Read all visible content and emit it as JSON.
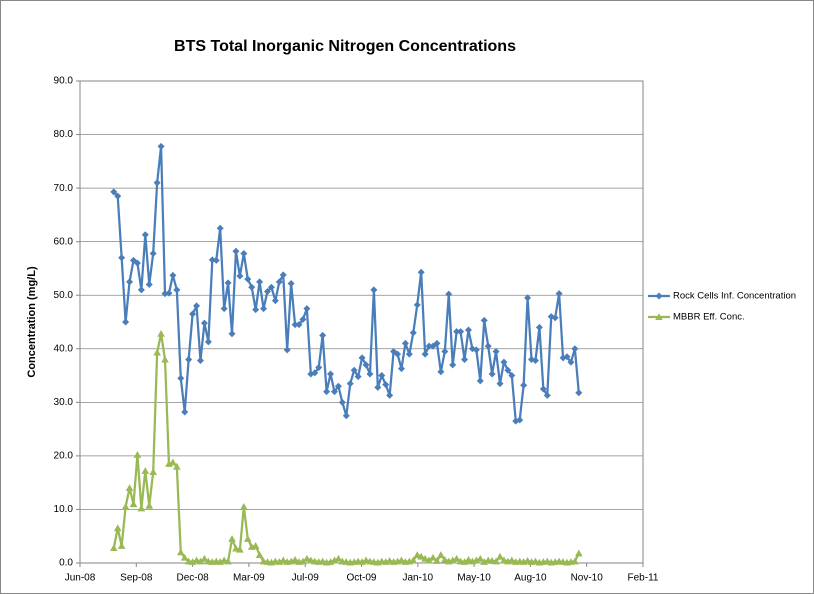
{
  "chart_data": {
    "type": "line",
    "title": "BTS  Total Inorganic Nitrogen Concentrations",
    "y_label": "Concentration (mg/L)",
    "x": [
      39660,
      39667,
      39674,
      39681,
      39688,
      39695,
      39702,
      39709,
      39716,
      39723,
      39730,
      39737,
      39744,
      39751,
      39758,
      39765,
      39772,
      39779,
      39786,
      39793,
      39800,
      39807,
      39814,
      39821,
      39828,
      39835,
      39842,
      39849,
      39856,
      39863,
      39870,
      39877,
      39884,
      39891,
      39898,
      39905,
      39912,
      39919,
      39926,
      39933,
      39940,
      39947,
      39954,
      39961,
      39968,
      39975,
      39982,
      39989,
      39996,
      40003,
      40010,
      40017,
      40024,
      40031,
      40038,
      40045,
      40052,
      40059,
      40066,
      40073,
      40080,
      40087,
      40094,
      40101,
      40108,
      40115,
      40122,
      40129,
      40136,
      40143,
      40150,
      40157,
      40164,
      40171,
      40178,
      40185,
      40192,
      40199,
      40206,
      40213,
      40220,
      40227,
      40234,
      40241,
      40248,
      40255,
      40262,
      40269,
      40276,
      40283,
      40290,
      40297,
      40304,
      40311,
      40318,
      40325,
      40332,
      40339,
      40346,
      40353,
      40360,
      40367,
      40374,
      40381,
      40388,
      40395,
      40402,
      40409,
      40416,
      40423,
      40430,
      40437,
      40444,
      40451,
      40458,
      40465,
      40472,
      40479,
      40486
    ],
    "series": [
      {
        "name": "Rock Cells Inf. Concentration",
        "color": "#4a7ebb",
        "marker": "diamond",
        "values": [
          69.3,
          68.5,
          57,
          45,
          52.5,
          56.5,
          56,
          51,
          61.3,
          52,
          57.8,
          71,
          77.8,
          50.3,
          50.4,
          53.7,
          51,
          34.5,
          28.2,
          38,
          46.5,
          48,
          37.8,
          44.8,
          41.3,
          56.6,
          56.5,
          62.5,
          47.5,
          52.3,
          42.8,
          58.2,
          53.6,
          57.8,
          53,
          51.5,
          47.3,
          52.5,
          47.5,
          50.7,
          51.5,
          49,
          52.5,
          53.8,
          39.8,
          52.2,
          44.5,
          44.5,
          45.5,
          47.5,
          35.3,
          35.5,
          36.5,
          42.5,
          32,
          35.3,
          32,
          33,
          30,
          27.5,
          33.5,
          36,
          34.8,
          38.3,
          37,
          35.3,
          51,
          32.8,
          35,
          33.3,
          31.3,
          39.5,
          39,
          36.3,
          41,
          39,
          43,
          48.2,
          54.3,
          39,
          40.5,
          40.5,
          41,
          35.7,
          39.5,
          50.2,
          37,
          43.2,
          43.2,
          38,
          43.5,
          40,
          39.8,
          34,
          45.3,
          40.5,
          35.3,
          39.5,
          33.5,
          37.5,
          36,
          35,
          26.5,
          26.7,
          33.2,
          49.5,
          38,
          37.8,
          44,
          32.5,
          31.3,
          46,
          45.8,
          50.3,
          38.3,
          38.5,
          37.5,
          40,
          31.8
        ]
      },
      {
        "name": "MBBR Eff. Conc.",
        "color": "#98b954",
        "marker": "triangle",
        "values": [
          2.8,
          6.5,
          3.2,
          10.5,
          14,
          11,
          20.2,
          10.2,
          17.2,
          10.7,
          17,
          39.3,
          42.8,
          38,
          18.5,
          18.8,
          18,
          2,
          1,
          0.3,
          0.2,
          0.5,
          0.3,
          0.8,
          0.3,
          0.2,
          0.3,
          0.2,
          0.5,
          0.3,
          4.5,
          2.7,
          2.5,
          10.5,
          4.5,
          3,
          3.2,
          1.5,
          0.3,
          0.2,
          0.1,
          0.3,
          0.2,
          0.5,
          0.2,
          0.3,
          0.6,
          0.2,
          0.3,
          0.8,
          0.5,
          0.3,
          0.2,
          0.3,
          0.1,
          0.2,
          0.5,
          0.8,
          0.3,
          0.2,
          0.1,
          0.2,
          0.3,
          0.2,
          0.5,
          0.3,
          0.2,
          0.1,
          0.3,
          0.2,
          0.4,
          0.2,
          0.3,
          0.5,
          0.2,
          0.3,
          0.5,
          1.5,
          1.2,
          0.8,
          0.5,
          1,
          0.4,
          1.5,
          0.6,
          0.3,
          0.5,
          0.8,
          0.3,
          0.2,
          0.6,
          0.3,
          0.5,
          0.8,
          0.2,
          0.5,
          0.4,
          0.3,
          1.2,
          0.5,
          0.3,
          0.5,
          0.2,
          0.3,
          0.2,
          0.4,
          0.2,
          0.3,
          0.1,
          0.2,
          0.3,
          0.1,
          0.2,
          0.3,
          0.2,
          0.1,
          0.2,
          0.3,
          1.8
        ]
      }
    ],
    "xlim": [
      39600,
      40600
    ],
    "xticks": [
      {
        "value": 39600,
        "label": "Jun-08"
      },
      {
        "value": 39700,
        "label": "Sep-08"
      },
      {
        "value": 39800,
        "label": "Dec-08"
      },
      {
        "value": 39900,
        "label": "Mar-09"
      },
      {
        "value": 40000,
        "label": "Jul-09"
      },
      {
        "value": 40100,
        "label": "Oct-09"
      },
      {
        "value": 40200,
        "label": "Jan-10"
      },
      {
        "value": 40300,
        "label": "May-10"
      },
      {
        "value": 40400,
        "label": "Aug-10"
      },
      {
        "value": 40500,
        "label": "Nov-10"
      },
      {
        "value": 40600,
        "label": "Feb-11"
      }
    ],
    "ylim": [
      0,
      90
    ],
    "yticks": [
      {
        "value": 0,
        "label": "0.0"
      },
      {
        "value": 10,
        "label": "10.0"
      },
      {
        "value": 20,
        "label": "20.0"
      },
      {
        "value": 30,
        "label": "30.0"
      },
      {
        "value": 40,
        "label": "40.0"
      },
      {
        "value": 50,
        "label": "50.0"
      },
      {
        "value": 60,
        "label": "60.0"
      },
      {
        "value": 70,
        "label": "70.0"
      },
      {
        "value": 80,
        "label": "80.0"
      },
      {
        "value": 90,
        "label": "90.0"
      }
    ],
    "grid": true,
    "legend": "right"
  }
}
